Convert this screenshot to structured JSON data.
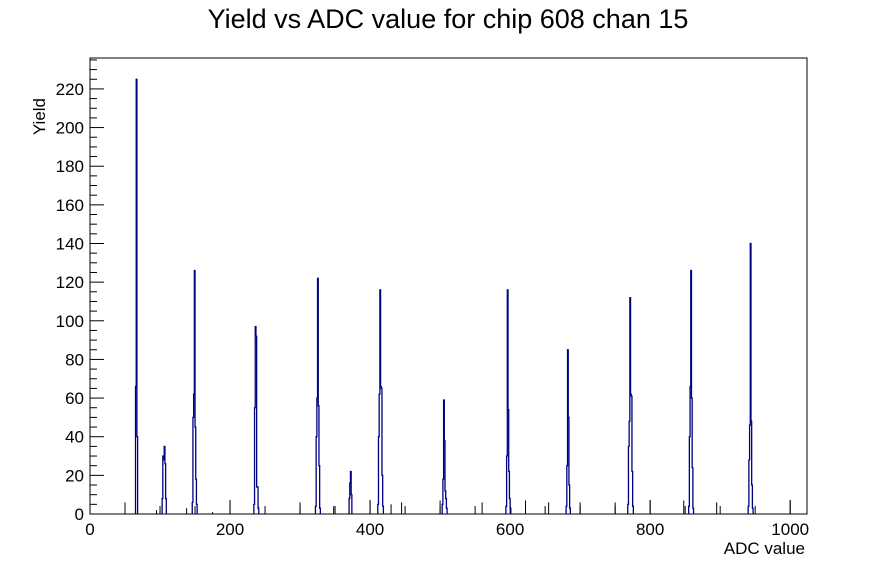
{
  "chart_data": {
    "type": "bar",
    "title": "Yield vs ADC value for chip 608 chan 15",
    "xlabel": "ADC value",
    "ylabel": "Yield",
    "xlim": [
      0,
      1024
    ],
    "ylim": [
      0,
      236
    ],
    "xticks": [
      0,
      200,
      400,
      600,
      800,
      1000
    ],
    "yticks": [
      0,
      20,
      40,
      60,
      80,
      100,
      120,
      140,
      160,
      180,
      200,
      220
    ],
    "grid": false,
    "line_color": "#000080",
    "peaks": [
      {
        "x": [
          65,
          66,
          67
        ],
        "values": [
          66,
          225,
          40
        ]
      },
      {
        "x": [
          103,
          104,
          105,
          106,
          107,
          108
        ],
        "values": [
          8,
          30,
          28,
          35,
          26,
          8
        ]
      },
      {
        "x": [
          146,
          147,
          148,
          149,
          150,
          151,
          152
        ],
        "values": [
          6,
          50,
          62,
          126,
          45,
          18,
          5
        ]
      },
      {
        "x": [
          234,
          235,
          236,
          237,
          238,
          239,
          240
        ],
        "values": [
          5,
          55,
          97,
          92,
          14,
          14,
          3
        ]
      },
      {
        "x": [
          322,
          323,
          324,
          325,
          326,
          327,
          328
        ],
        "values": [
          4,
          40,
          60,
          122,
          56,
          25,
          3
        ]
      },
      {
        "x": [
          370,
          371,
          372,
          373
        ],
        "values": [
          8,
          16,
          22,
          10
        ]
      },
      {
        "x": [
          411,
          412,
          413,
          414,
          415,
          416,
          417,
          418
        ],
        "values": [
          5,
          40,
          62,
          116,
          66,
          65,
          20,
          4
        ]
      },
      {
        "x": [
          503,
          504,
          505,
          506,
          507,
          508,
          509
        ],
        "values": [
          5,
          18,
          59,
          38,
          12,
          8,
          3
        ]
      },
      {
        "x": [
          594,
          595,
          596,
          597,
          598,
          599,
          600
        ],
        "values": [
          4,
          30,
          116,
          54,
          22,
          8,
          3
        ]
      },
      {
        "x": [
          680,
          681,
          682,
          683,
          684,
          685
        ],
        "values": [
          4,
          25,
          85,
          50,
          15,
          3
        ]
      },
      {
        "x": [
          768,
          769,
          770,
          771,
          772,
          773,
          774,
          775
        ],
        "values": [
          5,
          35,
          48,
          112,
          62,
          61,
          22,
          4
        ]
      },
      {
        "x": [
          855,
          856,
          857,
          858,
          859,
          860,
          861
        ],
        "values": [
          4,
          40,
          66,
          126,
          60,
          24,
          3
        ]
      },
      {
        "x": [
          940,
          941,
          942,
          943,
          944,
          945,
          946
        ],
        "values": [
          4,
          28,
          46,
          140,
          48,
          15,
          3
        ]
      }
    ],
    "isolated": [
      {
        "x": 50,
        "value": 6
      },
      {
        "x": 95,
        "value": 2
      },
      {
        "x": 138,
        "value": 3
      },
      {
        "x": 175,
        "value": 1
      },
      {
        "x": 200,
        "value": 7
      },
      {
        "x": 300,
        "value": 6
      },
      {
        "x": 348,
        "value": 4
      },
      {
        "x": 400,
        "value": 7
      },
      {
        "x": 430,
        "value": 5
      },
      {
        "x": 445,
        "value": 6
      },
      {
        "x": 500,
        "value": 7
      },
      {
        "x": 560,
        "value": 6
      },
      {
        "x": 622,
        "value": 7
      },
      {
        "x": 655,
        "value": 6
      },
      {
        "x": 700,
        "value": 6
      },
      {
        "x": 750,
        "value": 6
      },
      {
        "x": 800,
        "value": 7
      },
      {
        "x": 848,
        "value": 7
      },
      {
        "x": 895,
        "value": 6
      },
      {
        "x": 1000,
        "value": 7
      }
    ]
  }
}
